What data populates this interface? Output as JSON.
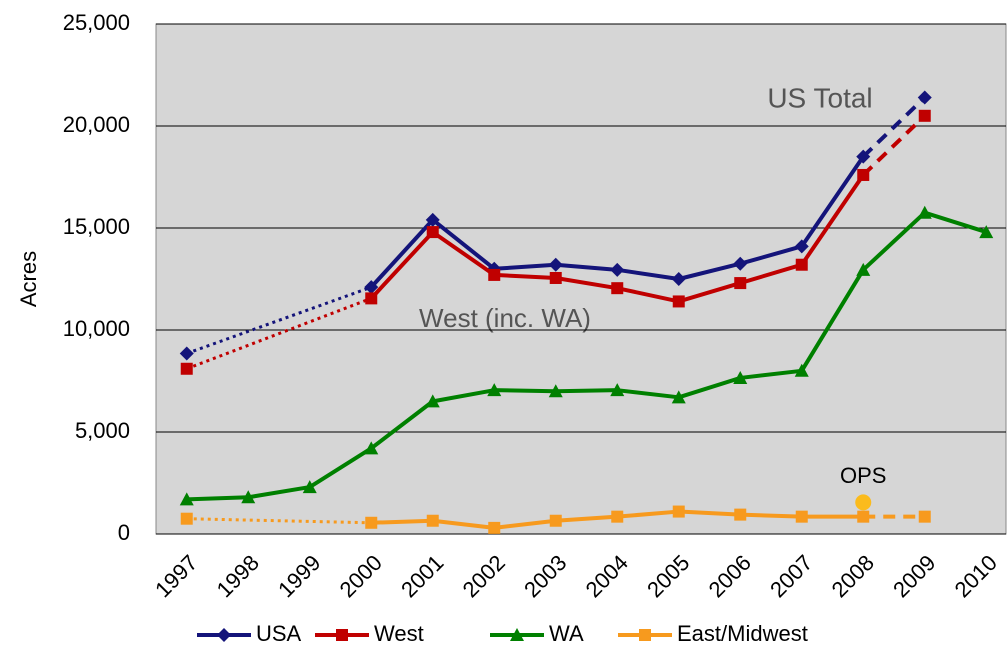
{
  "chart_data": {
    "type": "line",
    "y_label": "Acres",
    "categories": [
      "1997",
      "1998",
      "1999",
      "2000",
      "2001",
      "2002",
      "2003",
      "2004",
      "2005",
      "2006",
      "2007",
      "2008",
      "2009",
      "2010"
    ],
    "ylim": [
      0,
      25000
    ],
    "yticks": [
      0,
      {
        "value": 5000,
        "label": "5,000"
      },
      {
        "value": 10000,
        "label": "10,000"
      },
      {
        "value": 15000,
        "label": "15,000"
      },
      {
        "value": 20000,
        "label": "20,000"
      },
      {
        "value": 25000,
        "label": "25,000"
      }
    ],
    "grid": true,
    "series": [
      {
        "name": "USA",
        "color": "#14147a",
        "marker": "diamond",
        "last_dashed": true,
        "values": [
          8850,
          null,
          null,
          12100,
          15400,
          13000,
          13200,
          12950,
          12500,
          13250,
          14100,
          18500,
          21400,
          null
        ]
      },
      {
        "name": "West",
        "color": "#c00000",
        "marker": "square",
        "last_dashed": true,
        "values": [
          8100,
          null,
          null,
          11550,
          14800,
          12700,
          12550,
          12050,
          11400,
          12300,
          13200,
          17600,
          20500,
          null
        ]
      },
      {
        "name": "WA",
        "color": "#008000",
        "marker": "triangle",
        "last_dashed": false,
        "values": [
          1700,
          1800,
          2300,
          4200,
          6500,
          7050,
          7000,
          7050,
          6700,
          7650,
          8000,
          12950,
          15750,
          14800
        ]
      },
      {
        "name": "East/Midwest",
        "color": "#f79a1e",
        "marker": "square",
        "last_dashed": true,
        "values": [
          750,
          null,
          null,
          550,
          650,
          300,
          650,
          850,
          1100,
          950,
          850,
          850,
          850,
          null
        ]
      }
    ],
    "annotations": [
      {
        "text": "US Total"
      },
      {
        "text": "West (inc. WA)"
      },
      {
        "text": "OPS",
        "category": "2008",
        "value": 1550,
        "color": "#fbbb1c"
      }
    ]
  }
}
